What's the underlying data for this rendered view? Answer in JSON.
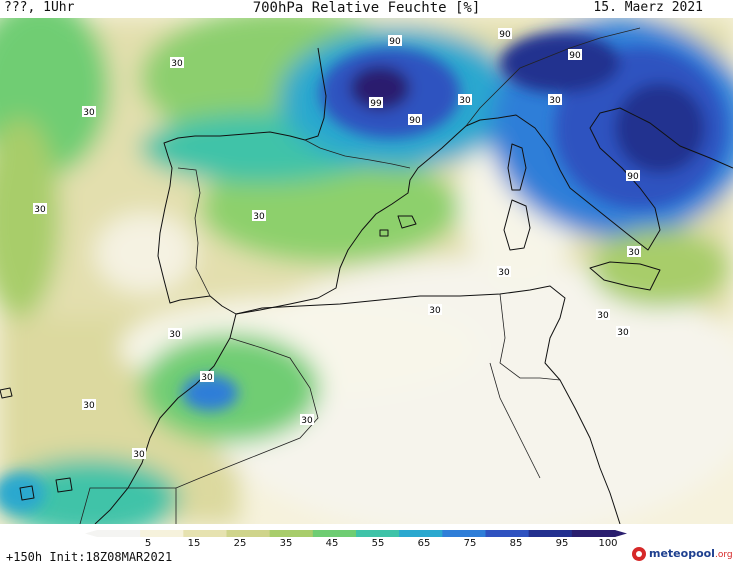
{
  "header": {
    "left": "???, 1Uhr",
    "title": "700hPa Relative Feuchte [%]",
    "date": "15. Maerz 2021"
  },
  "footer": {
    "forecast": "+150h Init:18Z08MAR2021"
  },
  "brand": {
    "name": "meteopool",
    "tld": ".org",
    "icon": "meteopool-logo-icon"
  },
  "legend": {
    "labels": [
      "5",
      "15",
      "25",
      "35",
      "45",
      "55",
      "65",
      "75",
      "85",
      "95",
      "100"
    ],
    "colors": [
      "#f4f4f2",
      "#f6f2dc",
      "#e6e2b0",
      "#cfd48b",
      "#a8cd6b",
      "#6fcd73",
      "#3fc3a8",
      "#2aa8cf",
      "#2f7ed8",
      "#2f52c0",
      "#23308f",
      "#2a1e6e"
    ]
  },
  "contour_labels": [
    {
      "text": "90"
    },
    {
      "text": "90"
    },
    {
      "text": "90"
    },
    {
      "text": "99"
    },
    {
      "text": "90"
    },
    {
      "text": "30"
    },
    {
      "text": "30"
    },
    {
      "text": "30"
    },
    {
      "text": "30"
    },
    {
      "text": "30"
    },
    {
      "text": "30"
    },
    {
      "text": "30"
    },
    {
      "text": "90"
    },
    {
      "text": "30"
    },
    {
      "text": "30"
    },
    {
      "text": "30"
    },
    {
      "text": "30"
    },
    {
      "text": "30"
    },
    {
      "text": "30"
    },
    {
      "text": "30"
    },
    {
      "text": "30"
    },
    {
      "text": "30"
    }
  ]
}
